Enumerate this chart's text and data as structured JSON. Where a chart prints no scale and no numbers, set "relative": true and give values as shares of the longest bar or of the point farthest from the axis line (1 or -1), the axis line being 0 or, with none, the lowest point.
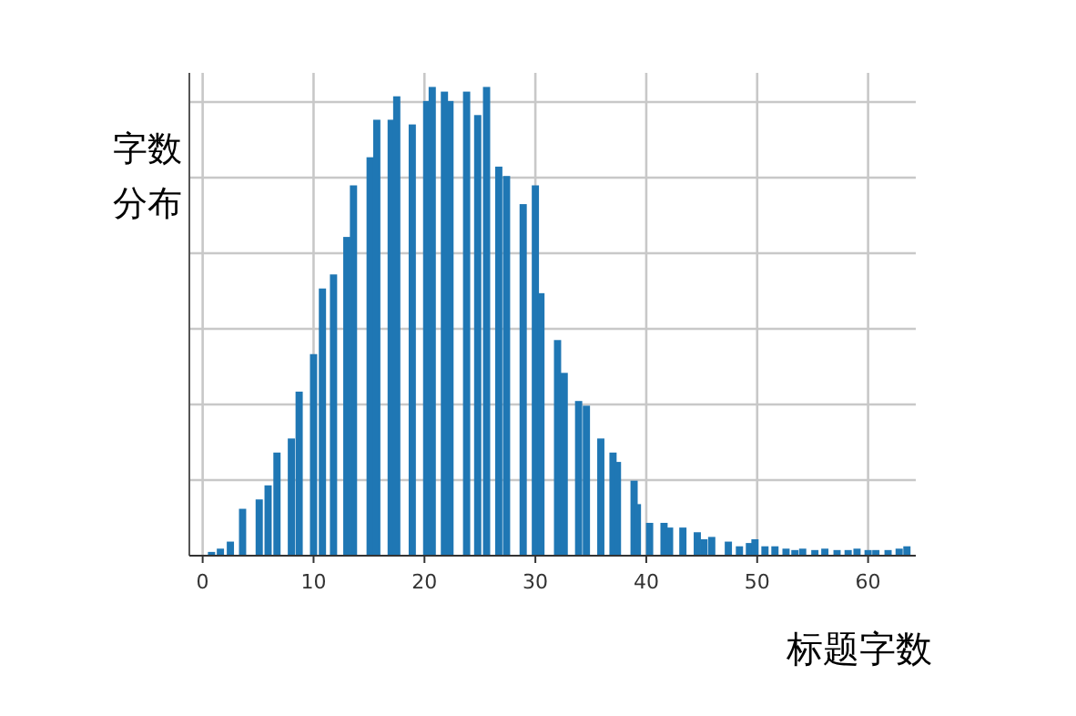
{
  "chart_data": {
    "type": "bar",
    "xlabel": "标题字数",
    "ylabel": "字数分布",
    "relative": true,
    "grid": true,
    "color": "#1f77b4",
    "x": [
      0.8,
      1.6,
      2.5,
      3.6,
      5.1,
      5.9,
      6.7,
      8.0,
      8.7,
      10.0,
      10.8,
      11.8,
      13.0,
      13.6,
      15.1,
      15.7,
      17.0,
      17.5,
      18.9,
      20.2,
      20.7,
      21.8,
      22.3,
      23.8,
      24.8,
      25.6,
      26.7,
      27.4,
      28.9,
      30.0,
      30.5,
      32.0,
      32.6,
      33.9,
      34.6,
      35.9,
      37.0,
      37.4,
      38.9,
      39.2,
      40.3,
      41.6,
      42.1,
      43.3,
      44.6,
      45.2,
      45.9,
      47.4,
      48.4,
      49.3,
      49.8,
      50.7,
      51.6,
      52.6,
      53.4,
      54.1,
      55.2,
      56.1,
      57.2,
      58.2,
      59.0,
      60.0,
      60.7,
      61.8,
      62.8,
      63.5
    ],
    "values": [
      0.008,
      0.015,
      0.03,
      0.1,
      0.12,
      0.15,
      0.22,
      0.25,
      0.35,
      0.43,
      0.57,
      0.6,
      0.68,
      0.79,
      0.85,
      0.93,
      0.93,
      0.98,
      0.92,
      0.97,
      1,
      0.99,
      0.97,
      0.99,
      0.94,
      1,
      0.83,
      0.81,
      0.75,
      0.79,
      0.56,
      0.46,
      0.39,
      0.33,
      0.32,
      0.25,
      0.22,
      0.2,
      0.16,
      0.11,
      0.07,
      0.07,
      0.06,
      0.06,
      0.05,
      0.035,
      0.04,
      0.03,
      0.02,
      0.027,
      0.035,
      0.02,
      0.02,
      0.015,
      0.012,
      0.015,
      0.012,
      0.015,
      0.012,
      0.012,
      0.015,
      0.012,
      0.012,
      0.012,
      0.015,
      0.02
    ],
    "xlim": [
      -1.2,
      64.3
    ],
    "xticks": [
      0,
      10,
      20,
      30,
      40,
      50,
      60
    ]
  }
}
